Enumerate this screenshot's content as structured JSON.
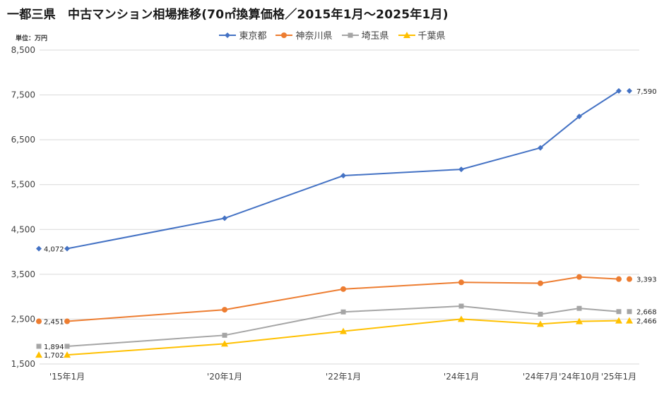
{
  "title": "一都三県　中古マンション相場推移(70㎡換算価格／2015年1月～2025年1月)",
  "unit": "単位：万円",
  "chart_data": {
    "type": "line",
    "title": "一都三県　中古マンション相場推移(70㎡換算価格／2015年1月～2025年1月)",
    "ylabel": "単位：万円",
    "xlabel": "",
    "categories": [
      "'15年1月",
      "'20年1月",
      "'22年1月",
      "'24年1月",
      "'24年7月",
      "'24年10月",
      "'25年1月"
    ],
    "yticks": [
      "8,500",
      "7,500",
      "6,500",
      "5,500",
      "4,500",
      "3,500",
      "2,500",
      "1,500"
    ],
    "ylim": [
      1500,
      8500
    ],
    "grid": true,
    "legend_position": "top",
    "series": [
      {
        "name": "東京都",
        "color": "#4472C4",
        "marker": "diamond",
        "values": [
          4072,
          4750,
          5700,
          5840,
          6320,
          7020,
          7590
        ],
        "start_label": "4,072",
        "end_label": "7,590"
      },
      {
        "name": "神奈川県",
        "color": "#ED7D31",
        "marker": "circle",
        "values": [
          2451,
          2710,
          3170,
          3320,
          3300,
          3440,
          3393
        ],
        "start_label": "2,451",
        "end_label": "3,393"
      },
      {
        "name": "埼玉県",
        "color": "#A5A5A5",
        "marker": "square",
        "values": [
          1894,
          2140,
          2660,
          2790,
          2610,
          2740,
          2668
        ],
        "start_label": "1,894",
        "end_label": "2,668"
      },
      {
        "name": "千葉県",
        "color": "#FFC000",
        "marker": "triangle",
        "values": [
          1702,
          1950,
          2230,
          2500,
          2390,
          2450,
          2466
        ],
        "start_label": "1,702",
        "end_label": "2,466"
      }
    ]
  }
}
